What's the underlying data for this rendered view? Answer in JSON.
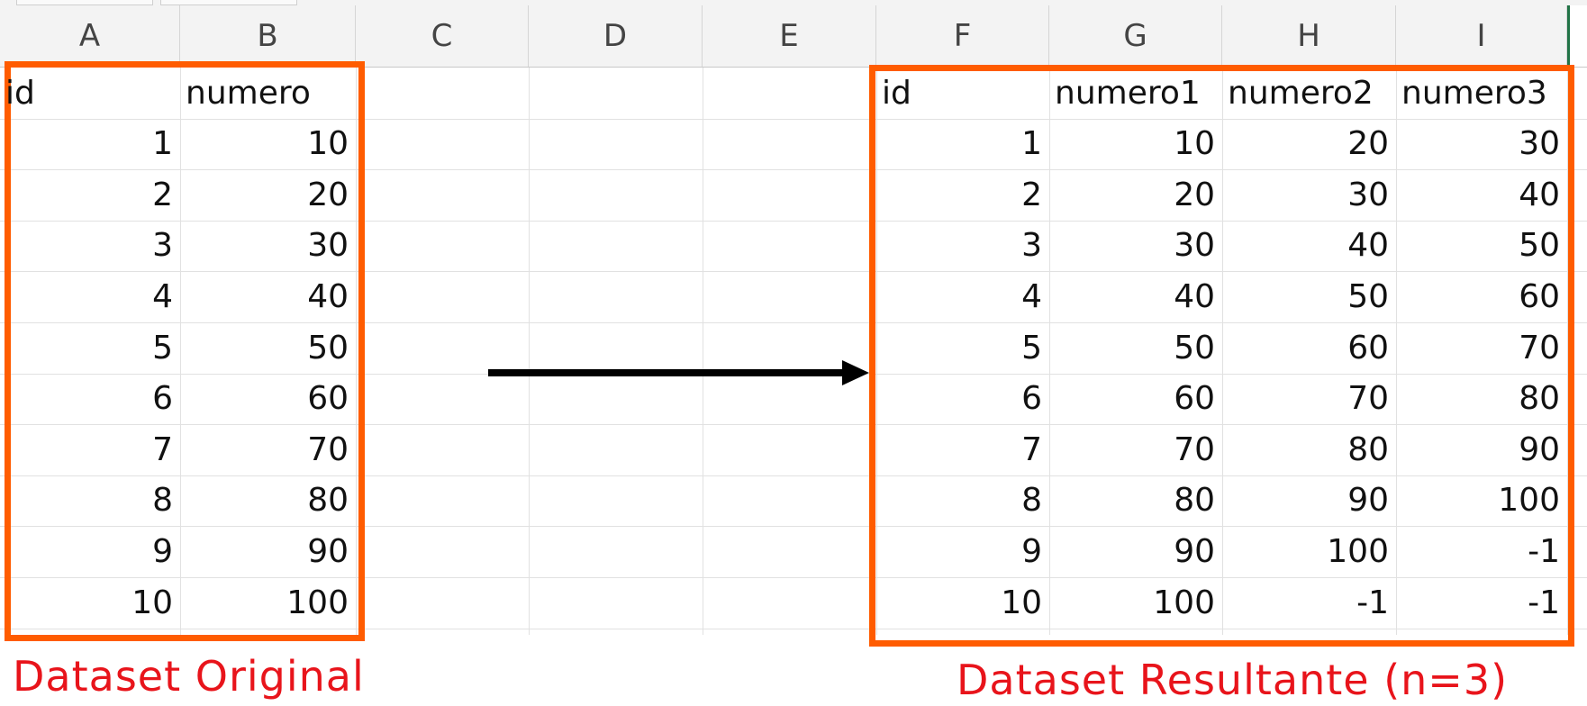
{
  "columns": [
    "A",
    "B",
    "C",
    "D",
    "E",
    "F",
    "G",
    "H",
    "I"
  ],
  "original": {
    "headers": [
      "id",
      "numero"
    ],
    "rows": [
      [
        "1",
        "10"
      ],
      [
        "2",
        "20"
      ],
      [
        "3",
        "30"
      ],
      [
        "4",
        "40"
      ],
      [
        "5",
        "50"
      ],
      [
        "6",
        "60"
      ],
      [
        "7",
        "70"
      ],
      [
        "8",
        "80"
      ],
      [
        "9",
        "90"
      ],
      [
        "10",
        "100"
      ]
    ],
    "caption": "Dataset Original"
  },
  "result": {
    "headers": [
      "id",
      "numero1",
      "numero2",
      "numero3"
    ],
    "rows": [
      [
        "1",
        "10",
        "20",
        "30"
      ],
      [
        "2",
        "20",
        "30",
        "40"
      ],
      [
        "3",
        "30",
        "40",
        "50"
      ],
      [
        "4",
        "40",
        "50",
        "60"
      ],
      [
        "5",
        "50",
        "60",
        "70"
      ],
      [
        "6",
        "60",
        "70",
        "80"
      ],
      [
        "7",
        "70",
        "80",
        "90"
      ],
      [
        "8",
        "80",
        "90",
        "100"
      ],
      [
        "9",
        "90",
        "100",
        "-1"
      ],
      [
        "10",
        "100",
        "-1",
        "-1"
      ]
    ],
    "caption": "Dataset Resultante (n=3)"
  },
  "colors": {
    "highlight_box": "#ff5c00",
    "caption": "#e8141b",
    "arrow": "#000000"
  }
}
